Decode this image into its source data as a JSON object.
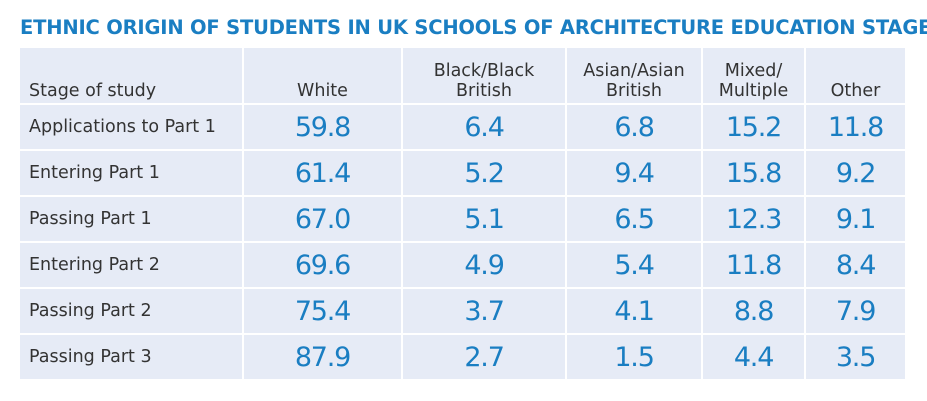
{
  "chart_data": {
    "type": "table",
    "title": "ETHNIC ORIGIN OF STUDENTS IN UK SCHOOLS OF ARCHITECTURE EDUCATION STAGES %",
    "row_header": "Stage of study",
    "columns": [
      [
        "White"
      ],
      [
        "Black/Black",
        "British"
      ],
      [
        "Asian/Asian",
        "British"
      ],
      [
        "Mixed/",
        "Multiple"
      ],
      [
        "Other"
      ]
    ],
    "rows": [
      {
        "stage": "Applications to Part 1",
        "values": [
          "59.8",
          "6.4",
          "6.8",
          "15.2",
          "11.8"
        ]
      },
      {
        "stage": "Entering Part 1",
        "values": [
          "61.4",
          "5.2",
          "9.4",
          "15.8",
          "9.2"
        ]
      },
      {
        "stage": "Passing Part 1",
        "values": [
          "67.0",
          "5.1",
          "6.5",
          "12.3",
          "9.1"
        ]
      },
      {
        "stage": "Entering Part 2",
        "values": [
          "69.6",
          "4.9",
          "5.4",
          "11.8",
          "8.4"
        ]
      },
      {
        "stage": "Passing Part 2",
        "values": [
          "75.4",
          "3.7",
          "4.1",
          "8.8",
          "7.9"
        ]
      },
      {
        "stage": "Passing Part 3",
        "values": [
          "87.9",
          "2.7",
          "1.5",
          "4.4",
          "3.5"
        ]
      }
    ]
  },
  "colors": {
    "accent": "#1a7ec2",
    "table_background": "#e6ebf6",
    "text": "#333333"
  }
}
